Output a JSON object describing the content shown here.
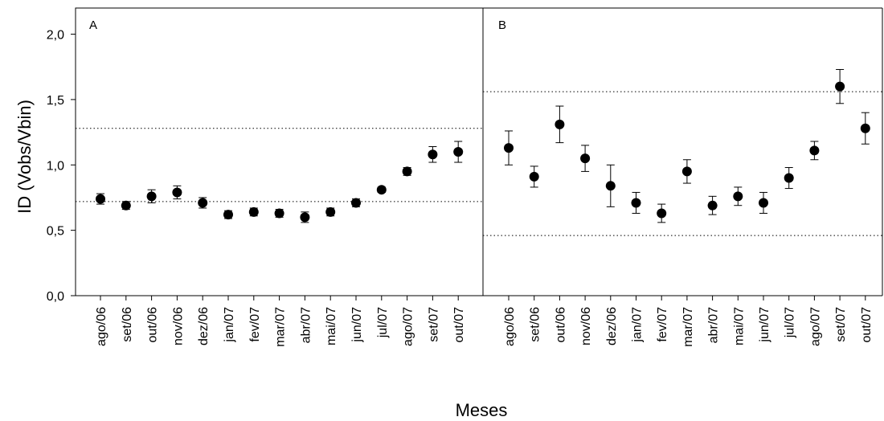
{
  "chart_data": {
    "type": "scatter",
    "ylabel": "ID (Vobs/Vbin)",
    "xlabel": "Meses",
    "ylim": [
      0,
      2.2
    ],
    "yticks": [
      "0,0",
      "0,5",
      "1,0",
      "1,5",
      "2,0"
    ],
    "ytick_values": [
      0,
      0.5,
      1.0,
      1.5,
      2.0
    ],
    "grid": false,
    "marker_color": "#000000",
    "categories": [
      "ago/06",
      "set/06",
      "out/06",
      "nov/06",
      "dez/06",
      "jan/07",
      "fev/07",
      "mar/07",
      "abr/07",
      "mai/07",
      "jun/07",
      "jul/07",
      "ago/07",
      "set/07",
      "out/07"
    ],
    "panels": [
      {
        "label": "A",
        "values": [
          0.74,
          0.69,
          0.76,
          0.79,
          0.71,
          0.62,
          0.64,
          0.63,
          0.6,
          0.64,
          0.71,
          0.81,
          0.95,
          1.08,
          1.1
        ],
        "errors": [
          0.04,
          0.03,
          0.05,
          0.05,
          0.04,
          0.03,
          0.03,
          0.03,
          0.04,
          0.03,
          0.03,
          0.02,
          0.03,
          0.06,
          0.08
        ],
        "reference_lines": [
          1.28,
          0.72
        ]
      },
      {
        "label": "B",
        "values": [
          1.13,
          0.91,
          1.31,
          1.05,
          0.84,
          0.71,
          0.63,
          0.95,
          0.69,
          0.76,
          0.71,
          0.9,
          1.11,
          1.6,
          1.28
        ],
        "errors": [
          0.13,
          0.08,
          0.14,
          0.1,
          0.16,
          0.08,
          0.07,
          0.09,
          0.07,
          0.07,
          0.08,
          0.08,
          0.07,
          0.13,
          0.12
        ],
        "reference_lines": [
          1.56,
          0.46
        ]
      }
    ]
  }
}
